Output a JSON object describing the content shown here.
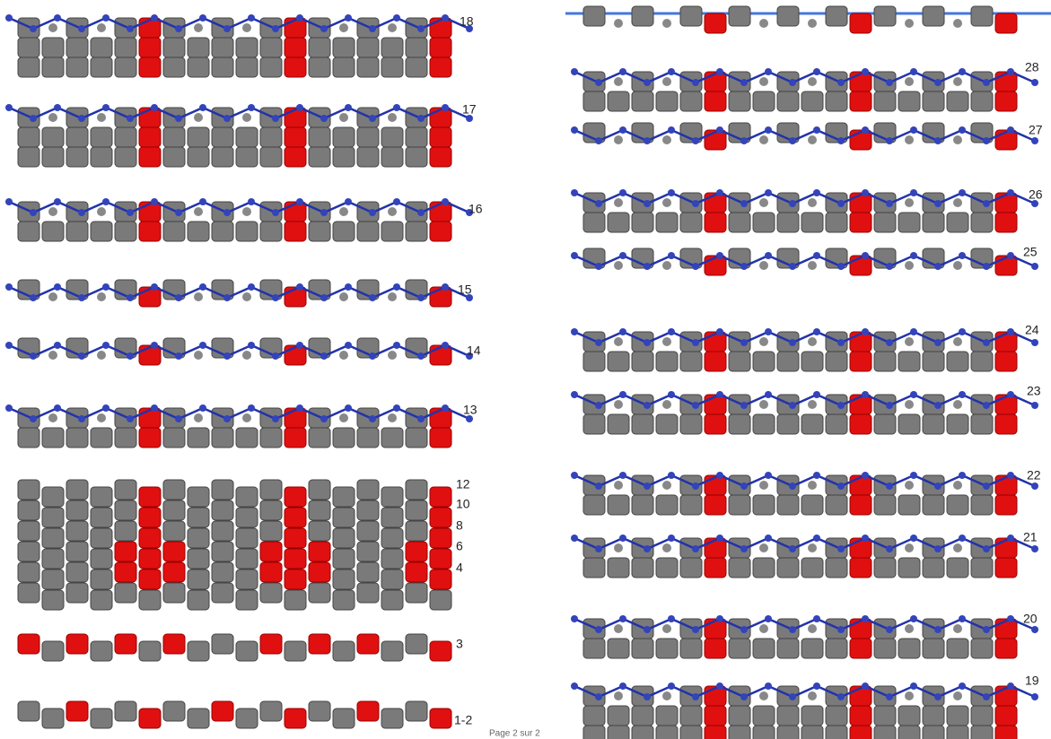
{
  "left_rows": [
    {
      "label": "18"
    },
    {
      "label": "17"
    },
    {
      "label": "16"
    },
    {
      "label": "15"
    },
    {
      "label": "14"
    },
    {
      "label": "13"
    },
    {
      "label": "12"
    },
    {
      "label": "10"
    },
    {
      "label": "8"
    },
    {
      "label": "6"
    },
    {
      "label": "4"
    },
    {
      "label": "3"
    },
    {
      "label": "1-2"
    }
  ],
  "right_rows": [
    {
      "label": "28"
    },
    {
      "label": "27"
    },
    {
      "label": "26"
    },
    {
      "label": "25"
    },
    {
      "label": "24"
    },
    {
      "label": "23"
    },
    {
      "label": "22"
    },
    {
      "label": "21"
    },
    {
      "label": "20"
    },
    {
      "label": "19"
    }
  ],
  "footer": "Page 2 sur 2"
}
